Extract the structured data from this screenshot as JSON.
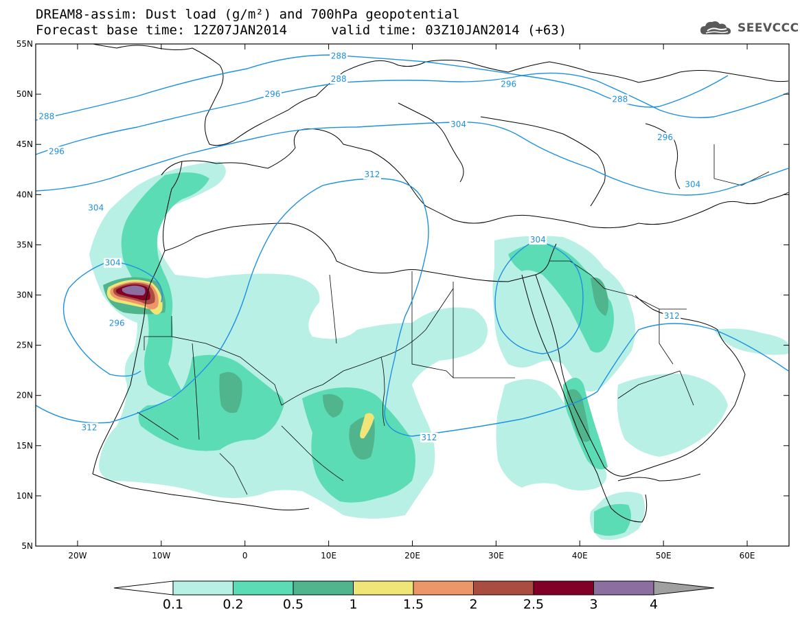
{
  "title_line1": "DREAM8-assim: Dust load (g/m²) and 700hPa geopotential",
  "title_base": "Forecast base time: 12Z07JAN2014",
  "title_valid": "valid time: 03Z10JAN2014 (+63)",
  "logo_text": "SEEVCCC",
  "logo_icon": "cloud-sun-icon",
  "map": {
    "lon_range": [
      -25,
      65
    ],
    "lat_range": [
      5,
      55
    ],
    "lon_ticks": [
      {
        "value": -20,
        "label": "20W"
      },
      {
        "value": -10,
        "label": "10W"
      },
      {
        "value": 0,
        "label": "0"
      },
      {
        "value": 10,
        "label": "10E"
      },
      {
        "value": 20,
        "label": "20E"
      },
      {
        "value": 30,
        "label": "30E"
      },
      {
        "value": 40,
        "label": "40E"
      },
      {
        "value": 50,
        "label": "50E"
      },
      {
        "value": 60,
        "label": "60E"
      }
    ],
    "lat_ticks": [
      {
        "value": 55,
        "label": "55N"
      },
      {
        "value": 50,
        "label": "50N"
      },
      {
        "value": 45,
        "label": "45N"
      },
      {
        "value": 40,
        "label": "40N"
      },
      {
        "value": 35,
        "label": "35N"
      },
      {
        "value": 30,
        "label": "30N"
      },
      {
        "value": 25,
        "label": "25N"
      },
      {
        "value": 20,
        "label": "20N"
      },
      {
        "value": 15,
        "label": "15N"
      },
      {
        "value": 10,
        "label": "10N"
      },
      {
        "value": 5,
        "label": "5N"
      }
    ],
    "contour_color": "#1e90e0",
    "contour_labels": [
      {
        "text": "288",
        "lon": -23.7,
        "lat": 47.8
      },
      {
        "text": "288",
        "lon": 11.2,
        "lat": 53.8
      },
      {
        "text": "288",
        "lon": 11.2,
        "lat": 51.5
      },
      {
        "text": "288",
        "lon": 44.8,
        "lat": 49.5
      },
      {
        "text": "296",
        "lon": -22.5,
        "lat": 44.3
      },
      {
        "text": "296",
        "lon": 3.3,
        "lat": 50.0
      },
      {
        "text": "296",
        "lon": 31.5,
        "lat": 51.0
      },
      {
        "text": "296",
        "lon": 50.2,
        "lat": 45.7
      },
      {
        "text": "296",
        "lon": -15.3,
        "lat": 27.2
      },
      {
        "text": "304",
        "lon": -17.8,
        "lat": 38.7
      },
      {
        "text": "304",
        "lon": -15.8,
        "lat": 33.2
      },
      {
        "text": "304",
        "lon": 25.5,
        "lat": 47.0
      },
      {
        "text": "304",
        "lon": 35.0,
        "lat": 35.5
      },
      {
        "text": "304",
        "lon": 53.5,
        "lat": 41.0
      },
      {
        "text": "312",
        "lon": 15.2,
        "lat": 42.0
      },
      {
        "text": "312",
        "lon": 51.0,
        "lat": 27.9
      },
      {
        "text": "312",
        "lon": -18.6,
        "lat": 16.8
      },
      {
        "text": "312",
        "lon": 22.0,
        "lat": 15.8
      }
    ]
  },
  "legend": {
    "title": "",
    "bins": [
      {
        "color": "#b8f0e6"
      },
      {
        "color": "#5cdcb4"
      },
      {
        "color": "#50b48c"
      },
      {
        "color": "#f0e678"
      },
      {
        "color": "#ec966a"
      },
      {
        "color": "#aa4c40"
      },
      {
        "color": "#820028"
      },
      {
        "color": "#8c6ea0"
      }
    ],
    "under_color": "#ffffff",
    "over_color": "#a0a0a0",
    "labels": [
      "0.1",
      "0.2",
      "0.5",
      "1",
      "1.5",
      "2",
      "2.5",
      "3",
      "4"
    ]
  }
}
